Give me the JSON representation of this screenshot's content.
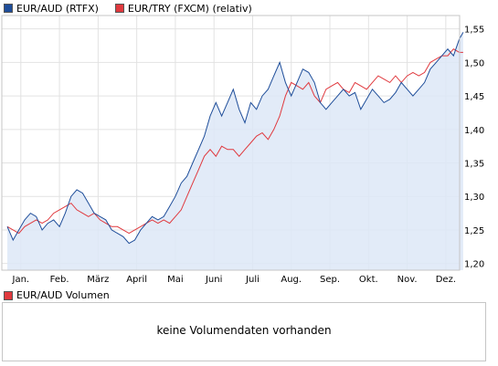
{
  "legend": {
    "series1": {
      "label": "EUR/AUD (RTFX)",
      "color": "#1f4e9a"
    },
    "series2": {
      "label": "EUR/TRY (FXCM) (relativ)",
      "color": "#e0393e"
    }
  },
  "volume": {
    "label": "EUR/AUD Volumen",
    "color": "#e0393e",
    "message": "keine Volumendaten vorhanden"
  },
  "chart_data": {
    "type": "line",
    "x_ticks": [
      "Jan.",
      "Feb.",
      "März",
      "April",
      "Mai",
      "Juni",
      "Juli",
      "Aug.",
      "Sep.",
      "Okt.",
      "Nov.",
      "Dez."
    ],
    "y_ticks": [
      "1,20",
      "1,25",
      "1,30",
      "1,35",
      "1,40",
      "1,45",
      "1,50",
      "1,55"
    ],
    "ylim": [
      1.19,
      1.57
    ],
    "x_range": [
      0,
      11.85
    ],
    "grid": true,
    "area_fill_series": "EUR/AUD (RTFX)",
    "series": [
      {
        "name": "EUR/AUD (RTFX)",
        "color": "#1f4e9a",
        "x": [
          0,
          0.15,
          0.3,
          0.45,
          0.6,
          0.75,
          0.9,
          1.05,
          1.2,
          1.35,
          1.5,
          1.65,
          1.8,
          1.95,
          2.1,
          2.25,
          2.4,
          2.55,
          2.7,
          2.85,
          3.0,
          3.15,
          3.3,
          3.45,
          3.6,
          3.75,
          3.9,
          4.05,
          4.2,
          4.35,
          4.5,
          4.65,
          4.8,
          4.95,
          5.1,
          5.25,
          5.4,
          5.55,
          5.7,
          5.85,
          6.0,
          6.15,
          6.3,
          6.45,
          6.6,
          6.75,
          6.9,
          7.05,
          7.2,
          7.35,
          7.5,
          7.65,
          7.8,
          7.95,
          8.1,
          8.25,
          8.4,
          8.55,
          8.7,
          8.85,
          9.0,
          9.15,
          9.3,
          9.45,
          9.6,
          9.75,
          9.9,
          10.05,
          10.2,
          10.35,
          10.5,
          10.65,
          10.8,
          10.95,
          11.1,
          11.25,
          11.4,
          11.55,
          11.7,
          11.8
        ],
        "values": [
          1.255,
          1.235,
          1.25,
          1.265,
          1.275,
          1.27,
          1.25,
          1.26,
          1.265,
          1.255,
          1.275,
          1.3,
          1.31,
          1.305,
          1.29,
          1.275,
          1.27,
          1.265,
          1.25,
          1.245,
          1.24,
          1.23,
          1.235,
          1.25,
          1.26,
          1.27,
          1.265,
          1.27,
          1.285,
          1.3,
          1.32,
          1.33,
          1.35,
          1.37,
          1.39,
          1.42,
          1.44,
          1.42,
          1.44,
          1.46,
          1.43,
          1.41,
          1.44,
          1.43,
          1.45,
          1.46,
          1.48,
          1.5,
          1.47,
          1.45,
          1.47,
          1.49,
          1.485,
          1.47,
          1.44,
          1.43,
          1.44,
          1.45,
          1.46,
          1.45,
          1.455,
          1.43,
          1.445,
          1.46,
          1.45,
          1.44,
          1.445,
          1.455,
          1.47,
          1.46,
          1.45,
          1.46,
          1.47,
          1.49,
          1.5,
          1.51,
          1.52,
          1.51,
          1.535,
          1.545
        ]
      },
      {
        "name": "EUR/TRY (FXCM) (relativ)",
        "color": "#e0393e",
        "x": [
          0,
          0.15,
          0.3,
          0.45,
          0.6,
          0.75,
          0.9,
          1.05,
          1.2,
          1.35,
          1.5,
          1.65,
          1.8,
          1.95,
          2.1,
          2.25,
          2.4,
          2.55,
          2.7,
          2.85,
          3.0,
          3.15,
          3.3,
          3.45,
          3.6,
          3.75,
          3.9,
          4.05,
          4.2,
          4.35,
          4.5,
          4.65,
          4.8,
          4.95,
          5.1,
          5.25,
          5.4,
          5.55,
          5.7,
          5.85,
          6.0,
          6.15,
          6.3,
          6.45,
          6.6,
          6.75,
          6.9,
          7.05,
          7.2,
          7.35,
          7.5,
          7.65,
          7.8,
          7.95,
          8.1,
          8.25,
          8.4,
          8.55,
          8.7,
          8.85,
          9.0,
          9.15,
          9.3,
          9.45,
          9.6,
          9.75,
          9.9,
          10.05,
          10.2,
          10.35,
          10.5,
          10.65,
          10.8,
          10.95,
          11.1,
          11.25,
          11.4,
          11.55,
          11.7,
          11.8
        ],
        "values": [
          1.255,
          1.25,
          1.245,
          1.255,
          1.26,
          1.265,
          1.26,
          1.265,
          1.275,
          1.28,
          1.285,
          1.29,
          1.28,
          1.275,
          1.27,
          1.275,
          1.265,
          1.26,
          1.255,
          1.255,
          1.25,
          1.245,
          1.25,
          1.255,
          1.26,
          1.265,
          1.26,
          1.265,
          1.26,
          1.27,
          1.28,
          1.3,
          1.32,
          1.34,
          1.36,
          1.37,
          1.36,
          1.375,
          1.37,
          1.37,
          1.36,
          1.37,
          1.38,
          1.39,
          1.395,
          1.385,
          1.4,
          1.42,
          1.45,
          1.47,
          1.465,
          1.46,
          1.47,
          1.45,
          1.44,
          1.46,
          1.465,
          1.47,
          1.46,
          1.455,
          1.47,
          1.465,
          1.46,
          1.47,
          1.48,
          1.475,
          1.47,
          1.48,
          1.47,
          1.48,
          1.485,
          1.48,
          1.485,
          1.5,
          1.505,
          1.51,
          1.51,
          1.52,
          1.515,
          1.515
        ]
      }
    ]
  }
}
